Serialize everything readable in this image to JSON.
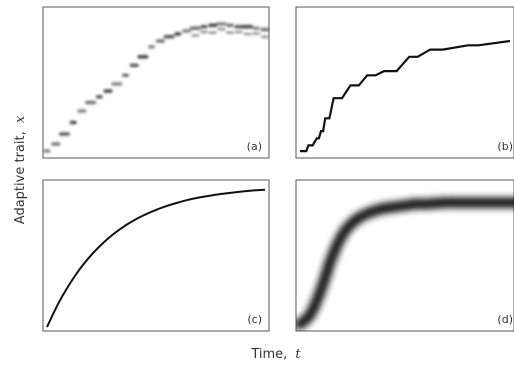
{
  "chart_data": [
    {
      "panel": "(a)",
      "type": "heatmap",
      "xlim": [
        0,
        100
      ],
      "ylim": [
        0,
        100
      ],
      "x": [
        0,
        4,
        8,
        12,
        16,
        20,
        24,
        28,
        32,
        36,
        40,
        44,
        48,
        52,
        56,
        60,
        64,
        68,
        72,
        76,
        80,
        84,
        88,
        92,
        96,
        100
      ],
      "y": [
        2,
        7,
        14,
        22,
        30,
        36,
        40,
        44,
        49,
        55,
        62,
        68,
        75,
        79,
        82,
        84,
        86,
        88,
        89,
        90,
        91,
        90,
        89,
        89,
        88,
        87
      ]
    },
    {
      "panel": "(b)",
      "type": "line",
      "xlim": [
        0,
        100
      ],
      "ylim": [
        0,
        100
      ],
      "x": [
        0,
        3,
        4,
        6,
        8,
        9,
        10,
        11,
        12,
        14,
        16,
        20,
        24,
        28,
        32,
        36,
        40,
        46,
        52,
        56,
        62,
        68,
        80,
        85,
        100
      ],
      "y": [
        2,
        2,
        6,
        6,
        11,
        11,
        16,
        16,
        25,
        25,
        39,
        39,
        48,
        48,
        55,
        55,
        58,
        58,
        68,
        68,
        73,
        73,
        76,
        76,
        79
      ]
    },
    {
      "panel": "(c)",
      "type": "line",
      "xlim": [
        0,
        100
      ],
      "ylim": [
        0,
        100
      ],
      "x": [
        0,
        5,
        10,
        15,
        20,
        25,
        30,
        35,
        40,
        45,
        50,
        55,
        60,
        65,
        70,
        75,
        80,
        85,
        90,
        95,
        100
      ],
      "y": [
        0,
        15.9,
        29.1,
        40.4,
        49.8,
        57.7,
        64.4,
        70.0,
        74.7,
        78.6,
        81.9,
        84.7,
        87.0,
        89.0,
        90.6,
        91.9,
        93.1,
        94.0,
        94.8,
        95.5,
        96.0
      ]
    },
    {
      "panel": "(d)",
      "type": "heatmap",
      "xlim": [
        0,
        100
      ],
      "ylim": [
        0,
        100
      ],
      "x": [
        0,
        5,
        10,
        15,
        20,
        25,
        30,
        35,
        40,
        45,
        50,
        55,
        60,
        65,
        70,
        75,
        80,
        85,
        90,
        95,
        100
      ],
      "y": [
        2,
        9,
        26,
        48,
        64,
        73,
        78,
        81,
        83,
        84,
        85,
        86,
        86,
        86.5,
        87,
        87,
        87,
        87,
        87,
        87,
        87
      ]
    }
  ],
  "axes": {
    "ylabel_text": "Adaptive trait,",
    "ylabel_symbol": "x",
    "xlabel_text": "Time,",
    "xlabel_symbol": "t"
  },
  "panel_labels": [
    "(a)",
    "(b)",
    "(c)",
    "(d)"
  ]
}
